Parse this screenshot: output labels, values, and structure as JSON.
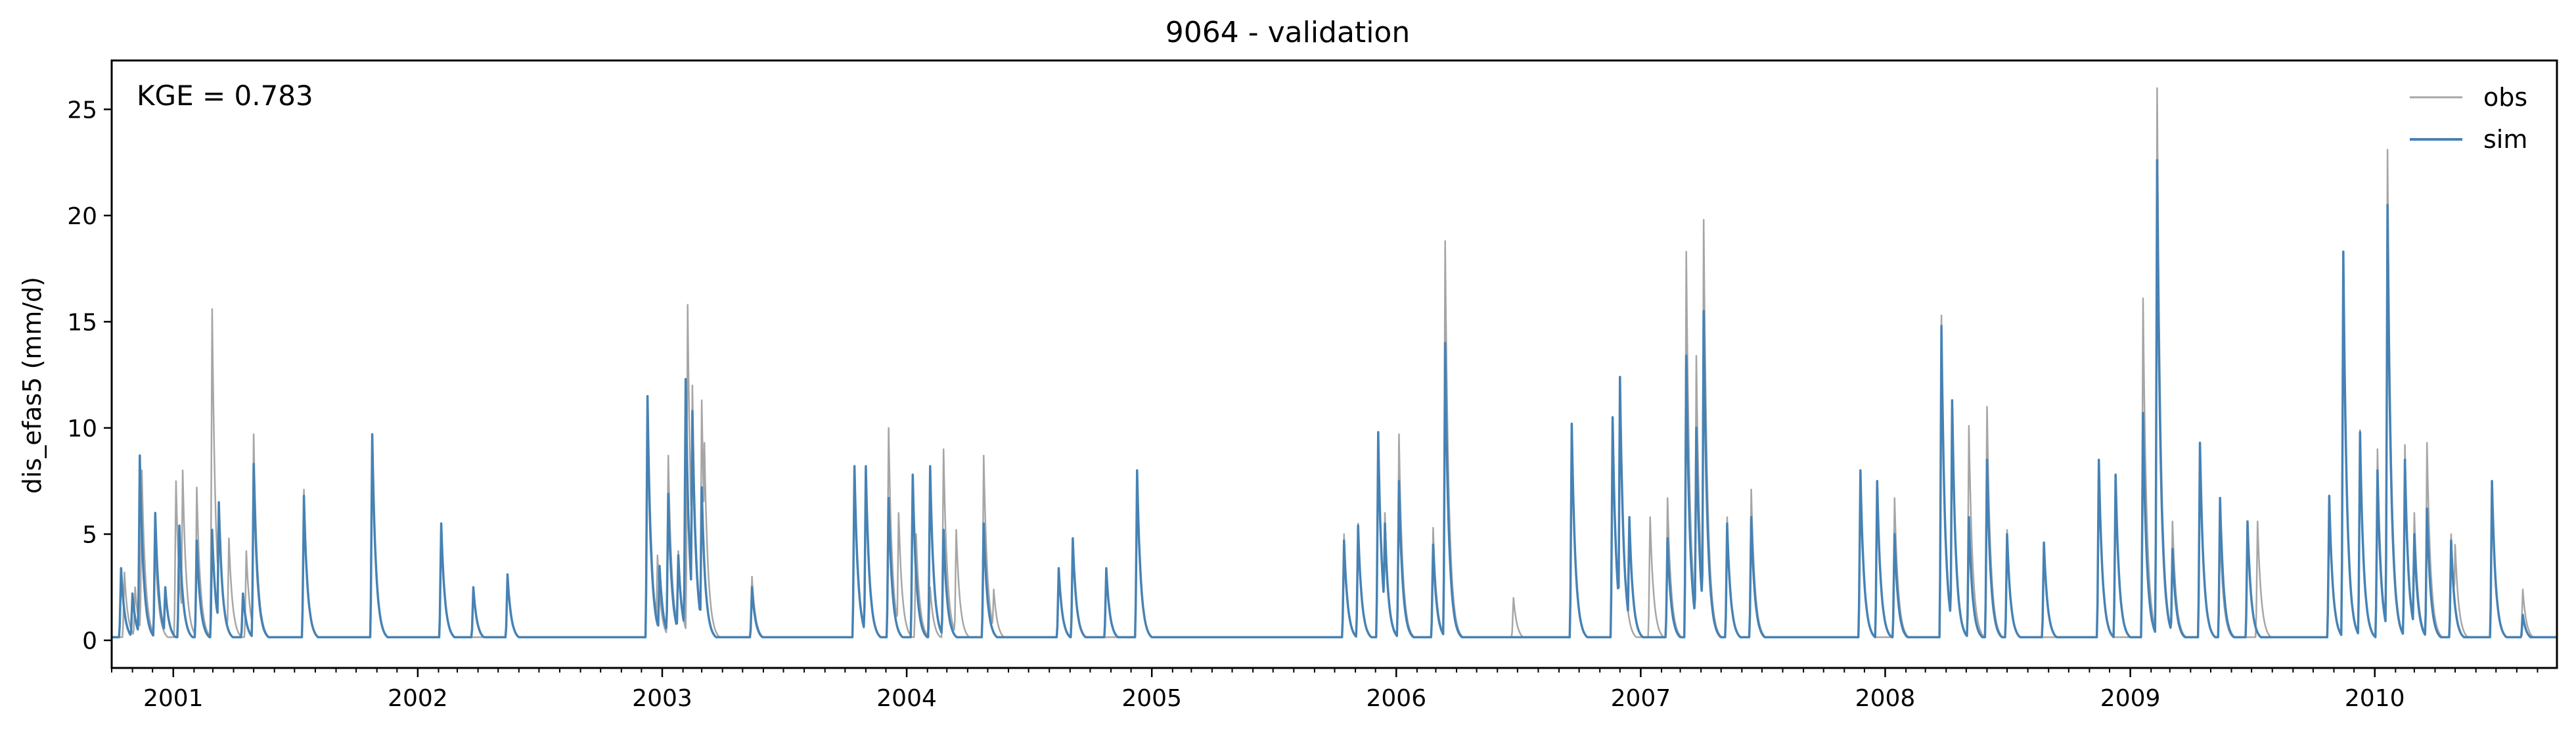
{
  "chart_data": {
    "type": "line",
    "title": "9064 - validation",
    "xlabel": "",
    "ylabel": "dis_efas5 (mm/d)",
    "annotation": "KGE = 0.783",
    "legend_position": "top-right",
    "grid": false,
    "xlim": [
      "2000-10-01",
      "2010-09-30"
    ],
    "ylim": [
      -1.3,
      27.3
    ],
    "x_ticks": [
      "2001",
      "2002",
      "2003",
      "2004",
      "2005",
      "2006",
      "2007",
      "2008",
      "2009",
      "2010"
    ],
    "y_ticks": [
      0,
      5,
      10,
      15,
      20,
      25
    ],
    "baseline": 0.15,
    "series": [
      {
        "name": "obs",
        "color": "#a6a6a6",
        "peaks": [
          [
            "2000-10-20",
            3.2
          ],
          [
            "2000-11-05",
            2.5
          ],
          [
            "2000-11-15",
            8.0
          ],
          [
            "2000-12-05",
            4.5
          ],
          [
            "2001-01-05",
            7.5
          ],
          [
            "2001-01-15",
            8.0
          ],
          [
            "2001-02-05",
            7.2
          ],
          [
            "2001-02-28",
            15.6
          ],
          [
            "2001-03-10",
            6.2
          ],
          [
            "2001-03-25",
            4.8
          ],
          [
            "2001-04-20",
            4.2
          ],
          [
            "2001-05-01",
            9.7
          ],
          [
            "2001-07-15",
            7.1
          ],
          [
            "2001-10-25",
            9.7
          ],
          [
            "2002-02-05",
            5.4
          ],
          [
            "2002-05-15",
            3.1
          ],
          [
            "2002-12-10",
            10.0
          ],
          [
            "2002-12-25",
            4.0
          ],
          [
            "2003-01-10",
            8.7
          ],
          [
            "2003-01-25",
            4.2
          ],
          [
            "2003-02-08",
            15.8
          ],
          [
            "2003-02-15",
            12.0
          ],
          [
            "2003-03-01",
            11.3
          ],
          [
            "2003-03-05",
            9.3
          ],
          [
            "2003-05-15",
            3.0
          ],
          [
            "2003-10-15",
            7.5
          ],
          [
            "2003-11-01",
            7.5
          ],
          [
            "2003-12-05",
            10.0
          ],
          [
            "2003-12-20",
            6.0
          ],
          [
            "2004-01-15",
            5.0
          ],
          [
            "2004-02-05",
            2.5
          ],
          [
            "2004-02-25",
            9.0
          ],
          [
            "2004-03-15",
            5.2
          ],
          [
            "2004-04-25",
            8.7
          ],
          [
            "2004-05-10",
            2.4
          ],
          [
            "2004-08-15",
            3.3
          ],
          [
            "2004-09-05",
            4.8
          ],
          [
            "2004-12-10",
            7.8
          ],
          [
            "2005-10-15",
            5.0
          ],
          [
            "2005-11-05",
            5.5
          ],
          [
            "2005-12-05",
            9.8
          ],
          [
            "2005-12-15",
            6.0
          ],
          [
            "2006-01-05",
            9.7
          ],
          [
            "2006-02-25",
            5.3
          ],
          [
            "2006-03-15",
            18.8
          ],
          [
            "2006-06-25",
            2.0
          ],
          [
            "2006-09-20",
            10.1
          ],
          [
            "2006-11-20",
            10.5
          ],
          [
            "2006-12-01",
            12.4
          ],
          [
            "2007-01-15",
            5.8
          ],
          [
            "2007-02-10",
            6.7
          ],
          [
            "2007-03-10",
            18.3
          ],
          [
            "2007-03-25",
            13.4
          ],
          [
            "2007-04-05",
            19.8
          ],
          [
            "2007-05-10",
            5.8
          ],
          [
            "2007-06-15",
            7.1
          ],
          [
            "2007-11-25",
            8.0
          ],
          [
            "2008-01-15",
            6.7
          ],
          [
            "2008-03-25",
            15.3
          ],
          [
            "2008-04-10",
            11.3
          ],
          [
            "2008-05-05",
            10.1
          ],
          [
            "2008-06-01",
            11.0
          ],
          [
            "2008-07-01",
            5.2
          ],
          [
            "2008-11-15",
            8.5
          ],
          [
            "2009-01-20",
            16.1
          ],
          [
            "2009-02-10",
            26.0
          ],
          [
            "2009-03-05",
            5.6
          ],
          [
            "2009-04-15",
            9.3
          ],
          [
            "2009-05-15",
            5.1
          ],
          [
            "2009-07-10",
            5.6
          ],
          [
            "2009-10-25",
            6.8
          ],
          [
            "2009-11-15",
            18.3
          ],
          [
            "2009-12-10",
            9.9
          ],
          [
            "2010-01-05",
            9.0
          ],
          [
            "2010-01-20",
            23.1
          ],
          [
            "2010-02-15",
            9.2
          ],
          [
            "2010-03-01",
            6.0
          ],
          [
            "2010-03-20",
            9.3
          ],
          [
            "2010-04-25",
            5.0
          ],
          [
            "2010-05-01",
            4.5
          ],
          [
            "2010-06-25",
            7.5
          ],
          [
            "2010-08-10",
            2.4
          ]
        ]
      },
      {
        "name": "sim",
        "color": "#4682b4",
        "peaks": [
          [
            "2000-10-15",
            3.4
          ],
          [
            "2000-11-01",
            2.2
          ],
          [
            "2000-11-12",
            8.7
          ],
          [
            "2000-12-05",
            6.0
          ],
          [
            "2000-12-20",
            2.5
          ],
          [
            "2001-01-10",
            5.4
          ],
          [
            "2001-02-05",
            4.7
          ],
          [
            "2001-02-28",
            5.2
          ],
          [
            "2001-03-10",
            6.5
          ],
          [
            "2001-04-15",
            2.2
          ],
          [
            "2001-05-01",
            8.3
          ],
          [
            "2001-07-15",
            6.8
          ],
          [
            "2001-10-25",
            9.7
          ],
          [
            "2002-02-05",
            5.5
          ],
          [
            "2002-03-25",
            2.5
          ],
          [
            "2002-05-15",
            3.1
          ],
          [
            "2002-12-10",
            11.5
          ],
          [
            "2002-12-28",
            3.5
          ],
          [
            "2003-01-10",
            6.9
          ],
          [
            "2003-01-25",
            4.0
          ],
          [
            "2003-02-05",
            12.3
          ],
          [
            "2003-02-15",
            10.8
          ],
          [
            "2003-03-01",
            7.2
          ],
          [
            "2003-05-15",
            2.5
          ],
          [
            "2003-10-15",
            8.2
          ],
          [
            "2003-11-01",
            8.2
          ],
          [
            "2003-12-05",
            6.7
          ],
          [
            "2004-01-10",
            7.8
          ],
          [
            "2004-02-05",
            8.2
          ],
          [
            "2004-02-25",
            5.2
          ],
          [
            "2004-04-25",
            5.5
          ],
          [
            "2004-08-15",
            3.4
          ],
          [
            "2004-09-05",
            4.8
          ],
          [
            "2004-10-25",
            3.4
          ],
          [
            "2004-12-10",
            8.0
          ],
          [
            "2005-10-15",
            4.7
          ],
          [
            "2005-11-05",
            5.4
          ],
          [
            "2005-12-05",
            9.8
          ],
          [
            "2005-12-15",
            5.5
          ],
          [
            "2006-01-05",
            7.5
          ],
          [
            "2006-02-25",
            4.5
          ],
          [
            "2006-03-15",
            14.0
          ],
          [
            "2006-09-20",
            10.2
          ],
          [
            "2006-11-20",
            10.5
          ],
          [
            "2006-12-01",
            12.4
          ],
          [
            "2006-12-15",
            5.8
          ],
          [
            "2007-02-10",
            4.8
          ],
          [
            "2007-03-10",
            13.4
          ],
          [
            "2007-03-25",
            10.0
          ],
          [
            "2007-04-05",
            15.5
          ],
          [
            "2007-05-10",
            5.5
          ],
          [
            "2007-06-15",
            5.8
          ],
          [
            "2007-11-25",
            8.0
          ],
          [
            "2007-12-20",
            7.5
          ],
          [
            "2008-01-15",
            5.0
          ],
          [
            "2008-03-25",
            14.8
          ],
          [
            "2008-04-10",
            11.3
          ],
          [
            "2008-05-05",
            5.8
          ],
          [
            "2008-06-01",
            8.5
          ],
          [
            "2008-07-01",
            5.0
          ],
          [
            "2008-08-25",
            4.6
          ],
          [
            "2008-11-15",
            8.5
          ],
          [
            "2008-12-10",
            7.8
          ],
          [
            "2009-01-20",
            10.7
          ],
          [
            "2009-02-10",
            22.6
          ],
          [
            "2009-03-05",
            4.3
          ],
          [
            "2009-04-15",
            9.3
          ],
          [
            "2009-05-15",
            6.7
          ],
          [
            "2009-06-25",
            5.6
          ],
          [
            "2009-10-25",
            6.8
          ],
          [
            "2009-11-15",
            18.3
          ],
          [
            "2009-12-10",
            9.8
          ],
          [
            "2010-01-05",
            8.0
          ],
          [
            "2010-01-20",
            20.5
          ],
          [
            "2010-02-15",
            8.5
          ],
          [
            "2010-03-01",
            5.0
          ],
          [
            "2010-03-20",
            6.2
          ],
          [
            "2010-04-25",
            4.7
          ],
          [
            "2010-06-25",
            7.5
          ],
          [
            "2010-08-10",
            1.2
          ]
        ]
      }
    ]
  }
}
